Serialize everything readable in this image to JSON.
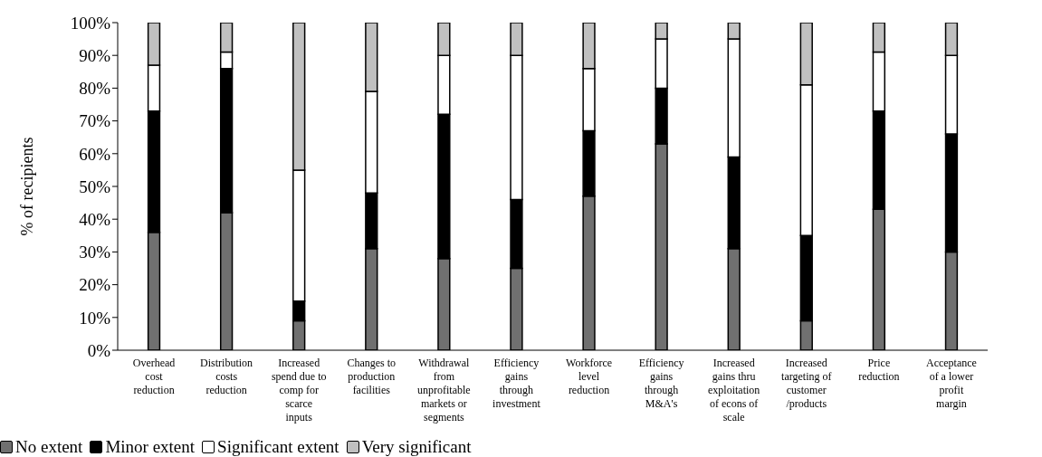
{
  "chart_data": {
    "type": "bar",
    "stacked": true,
    "ylabel": "% of recipients",
    "categories": [
      "Overhead cost reduction",
      "Distribution costs reduction",
      "Increased spend due to comp for scarce inputs",
      "Changes to production facilities",
      "Withdrawal from unprofitable markets or segments",
      "Efficiency gains through investment",
      "Workforce level reduction",
      "Efficiency gains through M&A's",
      "Increased gains thru exploitation of econs of scale",
      "Increased targeting of customer /products",
      "Price reduction",
      "Acceptance of a lower profit margin"
    ],
    "series": [
      {
        "name": "No extent",
        "color": "#707070",
        "values": [
          36,
          42,
          9,
          31,
          28,
          25,
          47,
          63,
          31,
          9,
          43,
          30
        ]
      },
      {
        "name": "Minor extent",
        "color": "#000000",
        "values": [
          37,
          44,
          6,
          17,
          44,
          21,
          20,
          17,
          28,
          26,
          30,
          36
        ]
      },
      {
        "name": "Significant extent",
        "color": "#ffffff",
        "values": [
          14,
          5,
          40,
          31,
          18,
          44,
          19,
          15,
          36,
          46,
          18,
          24
        ]
      },
      {
        "name": "Very significant",
        "color": "#c0c0c0",
        "values": [
          13,
          9,
          45,
          21,
          10,
          10,
          14,
          5,
          5,
          19,
          9,
          10
        ]
      }
    ],
    "ylim": [
      0,
      100
    ],
    "yticks": [
      {
        "value": 0,
        "label": "0%"
      },
      {
        "value": 10,
        "label": "10%"
      },
      {
        "value": 20,
        "label": "20%"
      },
      {
        "value": 30,
        "label": "30%"
      },
      {
        "value": 40,
        "label": "40%"
      },
      {
        "value": 50,
        "label": "50%"
      },
      {
        "value": 60,
        "label": "60%"
      },
      {
        "value": 70,
        "label": "70%"
      },
      {
        "value": 80,
        "label": "80%"
      },
      {
        "value": 90,
        "label": "90%"
      },
      {
        "value": 100,
        "label": "100%"
      }
    ],
    "grid": false,
    "legend": "bottom left"
  }
}
